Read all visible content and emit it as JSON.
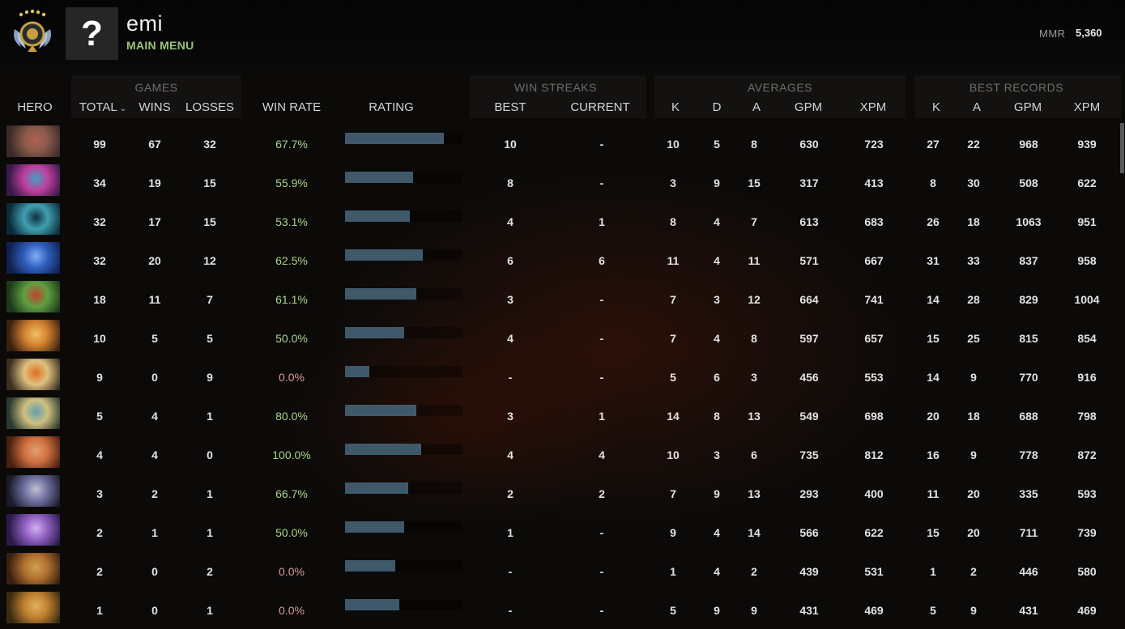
{
  "header": {
    "username": "emi",
    "subtitle": "MAIN MENU",
    "avatar_placeholder": "?",
    "mmr_label": "MMR",
    "mmr_value": "5,360",
    "rank_medal_icon": "immortal-rank-medal"
  },
  "groups": {
    "games": "GAMES",
    "win_streaks": "WIN STREAKS",
    "averages": "AVERAGES",
    "best_records": "BEST RECORDS"
  },
  "columns": {
    "hero": "HERO",
    "total": "TOTAL",
    "wins": "WINS",
    "losses": "LOSSES",
    "win_rate": "WIN RATE",
    "rating": "RATING",
    "best": "BEST",
    "current": "CURRENT",
    "avg_k": "K",
    "avg_d": "D",
    "avg_a": "A",
    "avg_gpm": "GPM",
    "avg_xpm": "XPM",
    "best_k": "K",
    "best_a": "A",
    "best_gpm": "GPM",
    "best_xpm": "XPM",
    "sort_indicator": "⌄"
  },
  "colors": {
    "win_rate_good": "#a9d48a",
    "win_rate_bad": "#d99a9a",
    "rating_bar": "#40596a",
    "menu_green": "#97c477"
  },
  "rows": [
    {
      "total": "99",
      "wins": "67",
      "losses": "32",
      "win_rate": "67.7%",
      "rating": 0.84,
      "best": "10",
      "current": "-",
      "k": "10",
      "d": "5",
      "a": "8",
      "gpm": "630",
      "xpm": "723",
      "bk": "27",
      "ba": "22",
      "bgpm": "968",
      "bxpm": "939",
      "hero_colors": [
        "#3a2a2a",
        "#8a5a4a",
        "#b06050"
      ],
      "wr_good": true
    },
    {
      "total": "34",
      "wins": "19",
      "losses": "15",
      "win_rate": "55.9%",
      "rating": 0.58,
      "best": "8",
      "current": "-",
      "k": "3",
      "d": "9",
      "a": "15",
      "gpm": "317",
      "xpm": "413",
      "bk": "8",
      "ba": "30",
      "bgpm": "508",
      "bxpm": "622",
      "hero_colors": [
        "#3a1a4a",
        "#c040a0",
        "#40a0c0"
      ],
      "wr_good": true
    },
    {
      "total": "32",
      "wins": "17",
      "losses": "15",
      "win_rate": "53.1%",
      "rating": 0.55,
      "best": "4",
      "current": "1",
      "k": "8",
      "d": "4",
      "a": "7",
      "gpm": "613",
      "xpm": "683",
      "bk": "26",
      "ba": "18",
      "bgpm": "1063",
      "bxpm": "951",
      "hero_colors": [
        "#0a2a3a",
        "#40a0b0",
        "#103040"
      ],
      "wr_good": true
    },
    {
      "total": "32",
      "wins": "20",
      "losses": "12",
      "win_rate": "62.5%",
      "rating": 0.66,
      "best": "6",
      "current": "6",
      "k": "11",
      "d": "4",
      "a": "11",
      "gpm": "571",
      "xpm": "667",
      "bk": "31",
      "ba": "33",
      "bgpm": "837",
      "bxpm": "958",
      "hero_colors": [
        "#102050",
        "#3060c0",
        "#80b0f0"
      ],
      "wr_good": true
    },
    {
      "total": "18",
      "wins": "11",
      "losses": "7",
      "win_rate": "61.1%",
      "rating": 0.61,
      "best": "3",
      "current": "-",
      "k": "7",
      "d": "3",
      "a": "12",
      "gpm": "664",
      "xpm": "741",
      "bk": "14",
      "ba": "28",
      "bgpm": "829",
      "bxpm": "1004",
      "hero_colors": [
        "#1a3a1a",
        "#60a040",
        "#c04030"
      ],
      "wr_good": true
    },
    {
      "total": "10",
      "wins": "5",
      "losses": "5",
      "win_rate": "50.0%",
      "rating": 0.5,
      "best": "4",
      "current": "-",
      "k": "7",
      "d": "4",
      "a": "8",
      "gpm": "597",
      "xpm": "657",
      "bk": "15",
      "ba": "25",
      "bgpm": "815",
      "bxpm": "854",
      "hero_colors": [
        "#3a2010",
        "#d08030",
        "#f0c060"
      ],
      "wr_good": true
    },
    {
      "total": "9",
      "wins": "0",
      "losses": "9",
      "win_rate": "0.0%",
      "rating": 0.21,
      "best": "-",
      "current": "-",
      "k": "5",
      "d": "6",
      "a": "3",
      "gpm": "456",
      "xpm": "553",
      "bk": "14",
      "ba": "9",
      "bgpm": "770",
      "bxpm": "916",
      "hero_colors": [
        "#3a3020",
        "#e0c080",
        "#e07020"
      ],
      "wr_good": false
    },
    {
      "total": "5",
      "wins": "4",
      "losses": "1",
      "win_rate": "80.0%",
      "rating": 0.61,
      "best": "3",
      "current": "1",
      "k": "14",
      "d": "8",
      "a": "13",
      "gpm": "549",
      "xpm": "698",
      "bk": "20",
      "ba": "18",
      "bgpm": "688",
      "bxpm": "798",
      "hero_colors": [
        "#2a3a30",
        "#d0c080",
        "#60a0b0"
      ],
      "wr_good": true
    },
    {
      "total": "4",
      "wins": "4",
      "losses": "0",
      "win_rate": "100.0%",
      "rating": 0.65,
      "best": "4",
      "current": "4",
      "k": "10",
      "d": "3",
      "a": "6",
      "gpm": "735",
      "xpm": "812",
      "bk": "16",
      "ba": "9",
      "bgpm": "778",
      "bxpm": "872",
      "hero_colors": [
        "#4a2010",
        "#d07040",
        "#e0a070"
      ],
      "wr_good": true
    },
    {
      "total": "3",
      "wins": "2",
      "losses": "1",
      "win_rate": "66.7%",
      "rating": 0.54,
      "best": "2",
      "current": "2",
      "k": "7",
      "d": "9",
      "a": "13",
      "gpm": "293",
      "xpm": "400",
      "bk": "11",
      "ba": "20",
      "bgpm": "335",
      "bxpm": "593",
      "hero_colors": [
        "#1a1a2a",
        "#7070a0",
        "#c0c0d0"
      ],
      "wr_good": true
    },
    {
      "total": "2",
      "wins": "1",
      "losses": "1",
      "win_rate": "50.0%",
      "rating": 0.5,
      "best": "1",
      "current": "-",
      "k": "9",
      "d": "4",
      "a": "14",
      "gpm": "566",
      "xpm": "622",
      "bk": "15",
      "ba": "20",
      "bgpm": "711",
      "bxpm": "739",
      "hero_colors": [
        "#2a1a4a",
        "#9060c0",
        "#d0b0f0"
      ],
      "wr_good": true
    },
    {
      "total": "2",
      "wins": "0",
      "losses": "2",
      "win_rate": "0.0%",
      "rating": 0.43,
      "best": "-",
      "current": "-",
      "k": "1",
      "d": "4",
      "a": "2",
      "gpm": "439",
      "xpm": "531",
      "bk": "1",
      "ba": "2",
      "bgpm": "446",
      "bxpm": "580",
      "hero_colors": [
        "#3a2010",
        "#b07030",
        "#d0a050"
      ],
      "wr_good": false
    },
    {
      "total": "1",
      "wins": "0",
      "losses": "1",
      "win_rate": "0.0%",
      "rating": 0.46,
      "best": "-",
      "current": "-",
      "k": "5",
      "d": "9",
      "a": "9",
      "gpm": "431",
      "xpm": "469",
      "bk": "5",
      "ba": "9",
      "bgpm": "431",
      "bxpm": "469",
      "hero_colors": [
        "#3a2a10",
        "#c08030",
        "#e0b060"
      ],
      "wr_good": false
    }
  ]
}
